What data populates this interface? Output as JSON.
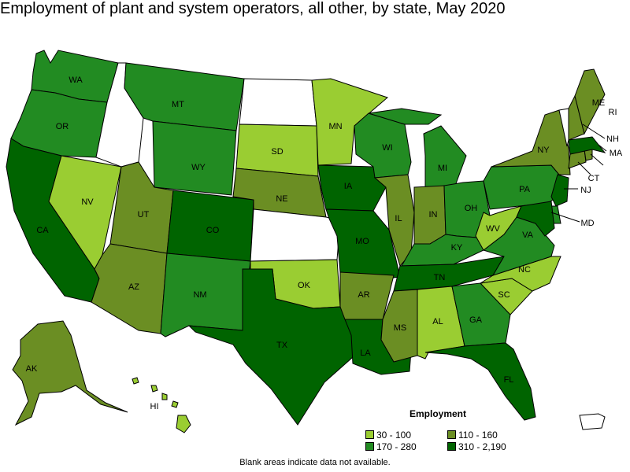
{
  "title": "Employment of plant and system operators, all other, by state, May 2020",
  "legend": {
    "title": "Employment",
    "items": [
      {
        "label": "30 - 100",
        "color": "#9acd32"
      },
      {
        "label": "110 - 160",
        "color": "#6b8e23"
      },
      {
        "label": "170 - 280",
        "color": "#228b22"
      },
      {
        "label": "310 - 2,190",
        "color": "#006400"
      }
    ]
  },
  "note": "Blank areas indicate data not available.",
  "colors": {
    "nodata": "#ffffff",
    "border": "#000000"
  },
  "states": {
    "WA": {
      "label": "WA",
      "bin": 2
    },
    "OR": {
      "label": "OR",
      "bin": 2
    },
    "CA": {
      "label": "CA",
      "bin": 3
    },
    "NV": {
      "label": "NV",
      "bin": 0
    },
    "ID": {
      "label": "",
      "bin": -1
    },
    "MT": {
      "label": "MT",
      "bin": 2
    },
    "WY": {
      "label": "WY",
      "bin": 2
    },
    "UT": {
      "label": "UT",
      "bin": 1
    },
    "AZ": {
      "label": "AZ",
      "bin": 1
    },
    "CO": {
      "label": "CO",
      "bin": 3
    },
    "NM": {
      "label": "NM",
      "bin": 2
    },
    "ND": {
      "label": "",
      "bin": -1
    },
    "SD": {
      "label": "SD",
      "bin": 0
    },
    "NE": {
      "label": "NE",
      "bin": 1
    },
    "KS": {
      "label": "",
      "bin": -1
    },
    "OK": {
      "label": "OK",
      "bin": 0
    },
    "TX": {
      "label": "TX",
      "bin": 3
    },
    "MN": {
      "label": "MN",
      "bin": 0
    },
    "IA": {
      "label": "IA",
      "bin": 3
    },
    "MO": {
      "label": "MO",
      "bin": 3
    },
    "AR": {
      "label": "AR",
      "bin": 1
    },
    "LA": {
      "label": "LA",
      "bin": 3
    },
    "WI": {
      "label": "WI",
      "bin": 2
    },
    "IL": {
      "label": "IL",
      "bin": 1
    },
    "MI": {
      "label": "MI",
      "bin": 2
    },
    "IN": {
      "label": "IN",
      "bin": 1
    },
    "OH": {
      "label": "OH",
      "bin": 2
    },
    "KY": {
      "label": "KY",
      "bin": 2
    },
    "TN": {
      "label": "TN",
      "bin": 3
    },
    "MS": {
      "label": "MS",
      "bin": 1
    },
    "AL": {
      "label": "AL",
      "bin": 0
    },
    "GA": {
      "label": "GA",
      "bin": 2
    },
    "FL": {
      "label": "FL",
      "bin": 3
    },
    "SC": {
      "label": "SC",
      "bin": 0
    },
    "NC": {
      "label": "NC",
      "bin": 0
    },
    "VA": {
      "label": "VA",
      "bin": 2
    },
    "WV": {
      "label": "WV",
      "bin": 0
    },
    "PA": {
      "label": "PA",
      "bin": 2
    },
    "NY": {
      "label": "NY",
      "bin": 1
    },
    "VT": {
      "label": "",
      "bin": -1
    },
    "NH": {
      "label": "NH",
      "bin": 1
    },
    "ME": {
      "label": "ME",
      "bin": 1
    },
    "MA": {
      "label": "MA",
      "bin": 3
    },
    "RI": {
      "label": "RI",
      "bin": 1
    },
    "CT": {
      "label": "CT",
      "bin": 1
    },
    "NJ": {
      "label": "NJ",
      "bin": 3
    },
    "DE": {
      "label": "",
      "bin": 2
    },
    "MD": {
      "label": "MD",
      "bin": 3
    },
    "AK": {
      "label": "AK",
      "bin": 1
    },
    "HI": {
      "label": "HI",
      "bin": 0
    },
    "PR": {
      "label": "",
      "bin": -1
    }
  }
}
